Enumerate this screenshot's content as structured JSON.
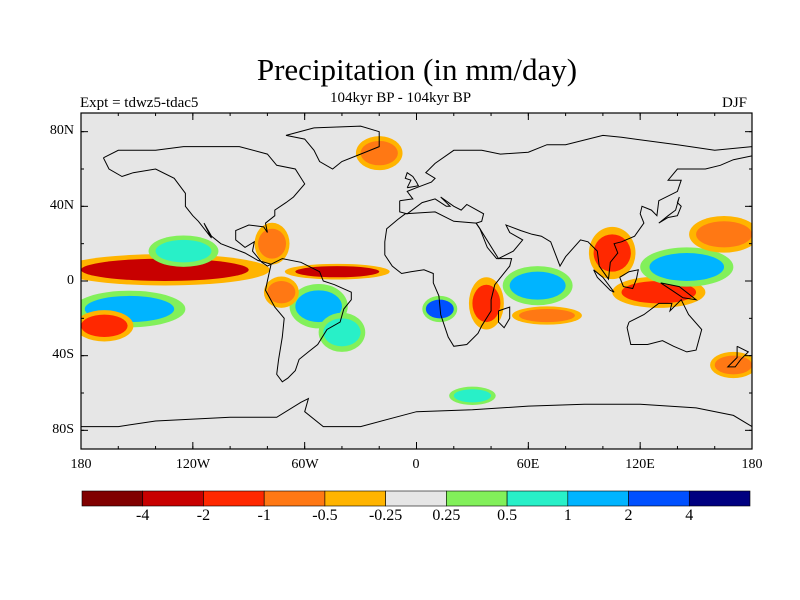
{
  "figure": {
    "title": "Precipitation (in mm/day)",
    "subtitle": "104kyr BP - 104kyr BP",
    "left_label": "Expt = tdwz5-tdac5",
    "right_label": "DJF"
  },
  "axes": {
    "y_ticks": [
      "80N",
      "40N",
      "0",
      "40S",
      "80S"
    ],
    "x_ticks": [
      "180",
      "120W",
      "60W",
      "0",
      "60E",
      "120E",
      "180"
    ],
    "projection": "cylindrical equidistant",
    "lon_range": [
      -180,
      180
    ],
    "lat_range": [
      -90,
      90
    ],
    "ocean_background": "#e6e6e6",
    "land_outline_color": "#000000"
  },
  "colorbar": {
    "labels": [
      "-4",
      "-2",
      "-1",
      "-0.5",
      "-0.25",
      "0.25",
      "0.5",
      "1",
      "2",
      "4"
    ],
    "colors": [
      "#800000",
      "#c80000",
      "#ff2800",
      "#ff7814",
      "#ffb400",
      "#e6e6e6",
      "#82f05a",
      "#28f0c8",
      "#00b4ff",
      "#0050ff",
      "#000080"
    ]
  },
  "chart_data": {
    "type": "heatmap",
    "variable": "precipitation anomaly (mm/day)",
    "season": "DJF",
    "lon_range": [
      -180,
      180
    ],
    "lat_range": [
      -90,
      90
    ],
    "levels": [
      -4,
      -2,
      -1,
      -0.5,
      -0.25,
      0.25,
      0.5,
      1,
      2,
      4
    ],
    "anomaly_features": [
      {
        "lon": [
          -180,
          -90
        ],
        "lat": [
          0,
          12
        ],
        "value": -2.5
      },
      {
        "lon": [
          -65,
          -20
        ],
        "lat": [
          2,
          8
        ],
        "value": -2.5
      },
      {
        "lon": [
          -85,
          -70
        ],
        "lat": [
          12,
          28
        ],
        "value": -1
      },
      {
        "lon": [
          -30,
          -10
        ],
        "lat": [
          62,
          75
        ],
        "value": -1
      },
      {
        "lon": [
          -178,
          -130
        ],
        "lat": [
          -22,
          -8
        ],
        "value": 1.5
      },
      {
        "lon": [
          -180,
          -155
        ],
        "lat": [
          -30,
          -18
        ],
        "value": -2
      },
      {
        "lon": [
          -140,
          -110
        ],
        "lat": [
          10,
          22
        ],
        "value": 0.5
      },
      {
        "lon": [
          -65,
          -40
        ],
        "lat": [
          -22,
          -5
        ],
        "value": 1.5
      },
      {
        "lon": [
          -50,
          -30
        ],
        "lat": [
          -35,
          -20
        ],
        "value": 0.5
      },
      {
        "lon": [
          -80,
          -65
        ],
        "lat": [
          -12,
          0
        ],
        "value": -1
      },
      {
        "lon": [
          5,
          20
        ],
        "lat": [
          -20,
          -10
        ],
        "value": 2.5
      },
      {
        "lon": [
          30,
          45
        ],
        "lat": [
          -22,
          -2
        ],
        "value": -2
      },
      {
        "lon": [
          50,
          80
        ],
        "lat": [
          -10,
          5
        ],
        "value": 1
      },
      {
        "lon": [
          55,
          85
        ],
        "lat": [
          -22,
          -15
        ],
        "value": -1
      },
      {
        "lon": [
          95,
          115
        ],
        "lat": [
          5,
          25
        ],
        "value": -2
      },
      {
        "lon": [
          110,
          150
        ],
        "lat": [
          -12,
          0
        ],
        "value": -1.5
      },
      {
        "lon": [
          125,
          165
        ],
        "lat": [
          0,
          15
        ],
        "value": 1
      },
      {
        "lon": [
          150,
          180
        ],
        "lat": [
          18,
          32
        ],
        "value": -1
      },
      {
        "lon": [
          160,
          180
        ],
        "lat": [
          -50,
          -40
        ],
        "value": -1
      },
      {
        "lon": [
          20,
          40
        ],
        "lat": [
          -65,
          -58
        ],
        "value": 0.5
      }
    ]
  }
}
